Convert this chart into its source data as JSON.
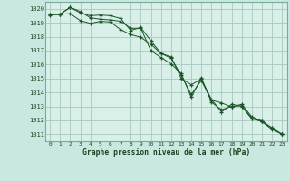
{
  "title": "Graphe pression niveau de la mer (hPa)",
  "bg_color": "#c8e8e0",
  "plot_bg_color": "#d8f0e8",
  "grid_color": "#a8c8c0",
  "line_color": "#1a5528",
  "xlim": [
    -0.5,
    23.5
  ],
  "ylim": [
    1010.5,
    1020.5
  ],
  "yticks": [
    1011,
    1012,
    1013,
    1014,
    1015,
    1016,
    1017,
    1018,
    1019,
    1020
  ],
  "xticks": [
    0,
    1,
    2,
    3,
    4,
    5,
    6,
    7,
    8,
    9,
    10,
    11,
    12,
    13,
    14,
    15,
    16,
    17,
    18,
    19,
    20,
    21,
    22,
    23
  ],
  "line1": [
    1019.6,
    1019.6,
    1020.1,
    1019.8,
    1019.35,
    1019.25,
    1019.2,
    1019.1,
    1018.6,
    1018.6,
    1017.0,
    1016.5,
    1016.05,
    1015.35,
    1013.65,
    1015.05,
    1013.3,
    1012.75,
    1013.0,
    1013.05,
    1012.15,
    1011.9,
    1011.35,
    1011.0
  ],
  "line2": [
    1019.6,
    1019.6,
    1020.1,
    1019.7,
    1019.5,
    1019.55,
    1019.5,
    1019.3,
    1018.45,
    1018.65,
    1017.7,
    1016.8,
    1016.55,
    1015.0,
    1014.55,
    1014.95,
    1013.5,
    1012.6,
    1013.15,
    1013.0,
    1012.1,
    1011.95,
    1011.45,
    1011.0
  ],
  "line3": [
    1019.55,
    1019.6,
    1019.65,
    1019.15,
    1018.95,
    1019.1,
    1019.05,
    1018.5,
    1018.15,
    1017.95,
    1017.45,
    1016.8,
    1016.45,
    1015.25,
    1013.85,
    1014.85,
    1013.45,
    1013.25,
    1012.95,
    1013.15,
    1012.25,
    1011.95,
    1011.45,
    1011.0
  ]
}
